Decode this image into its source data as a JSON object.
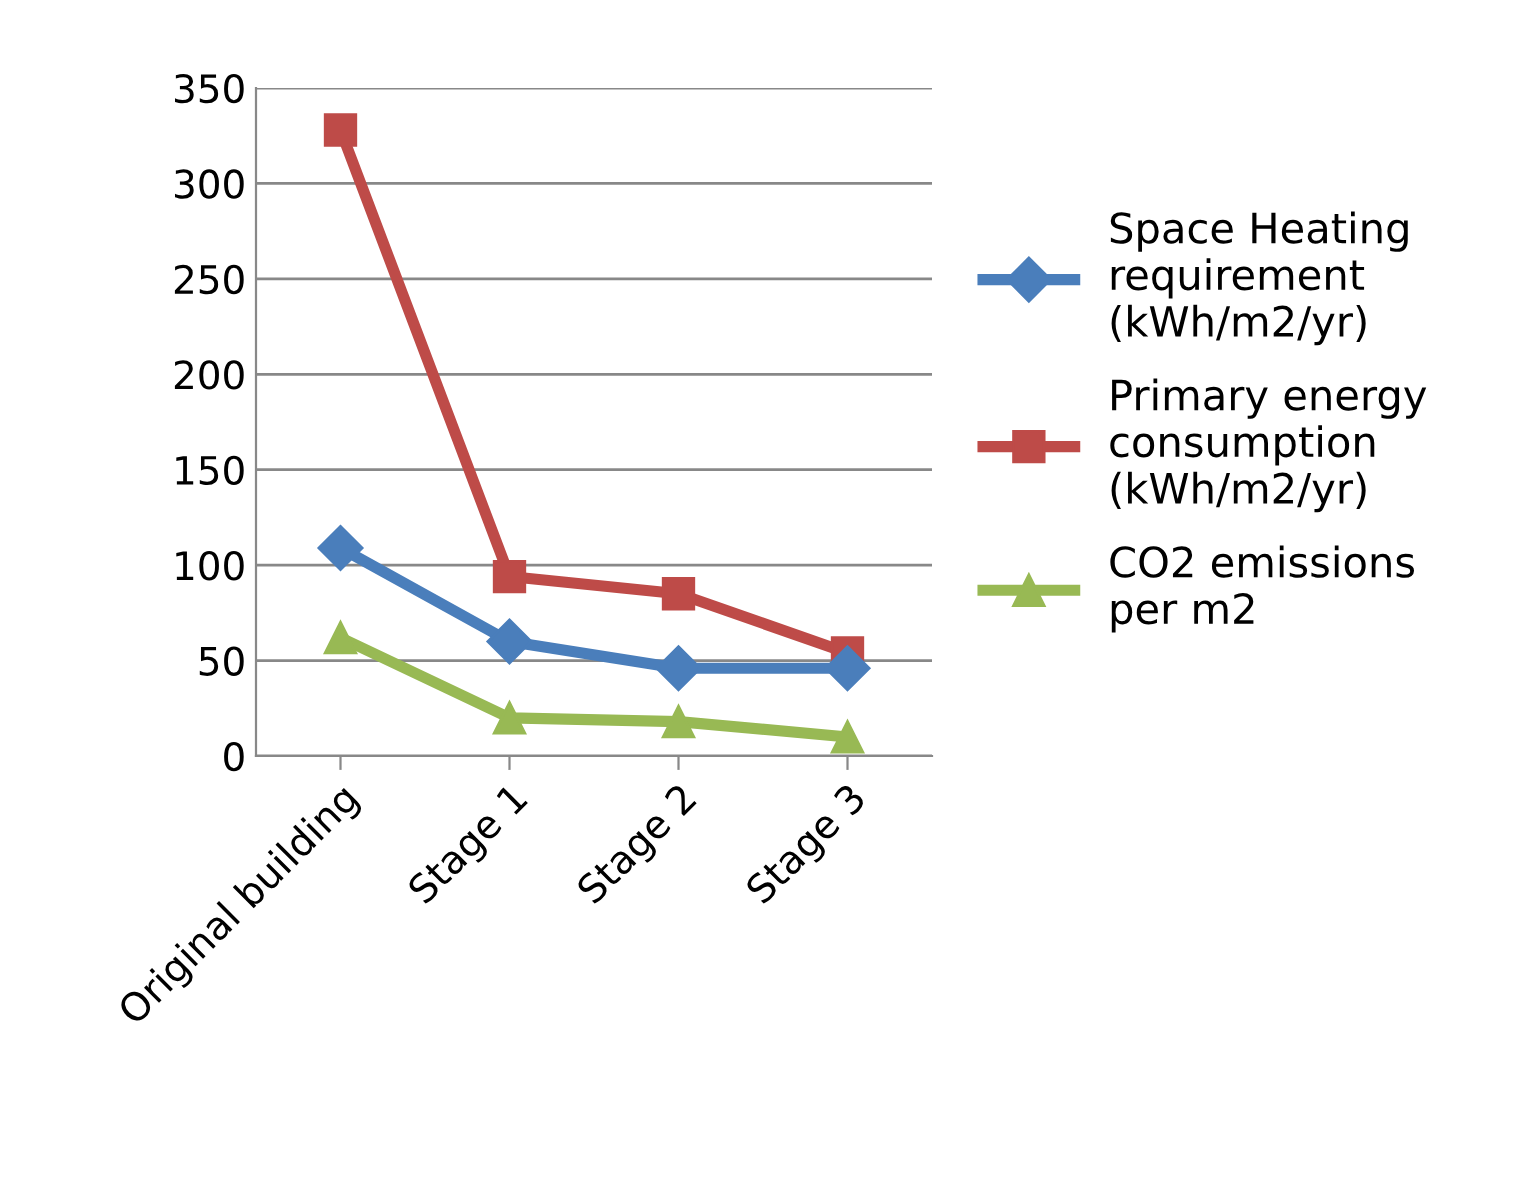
{
  "chart_data": {
    "type": "line",
    "categories": [
      "Original building",
      "Stage 1",
      "Stage 2",
      "Stage 3"
    ],
    "series": [
      {
        "name": "Space Heating requirement (kWh/m2/yr)",
        "color": "#4a7ebb",
        "marker": "diamond",
        "values": [
          109,
          60,
          46,
          46
        ]
      },
      {
        "name": "Primary energy consumption (kWh/m2/yr)",
        "color": "#be4b48",
        "marker": "square",
        "values": [
          328,
          94,
          85,
          54
        ]
      },
      {
        "name": "CO2 emissions per m2",
        "color": "#98b954",
        "marker": "triangle",
        "values": [
          62,
          20,
          18,
          10
        ]
      }
    ],
    "ylim": [
      0,
      350
    ],
    "yticks": [
      0,
      50,
      100,
      150,
      200,
      250,
      300,
      350
    ],
    "grid": "y",
    "legend": "right"
  }
}
